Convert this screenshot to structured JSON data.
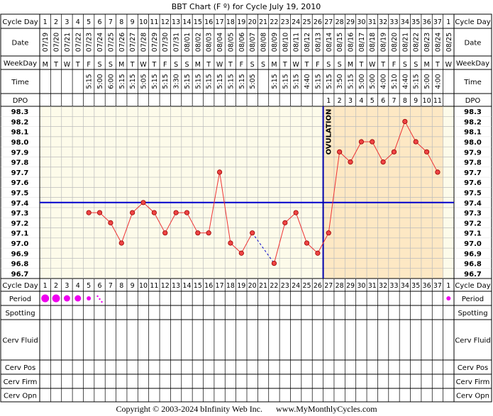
{
  "chart_data": {
    "type": "line",
    "title": "BBT Chart (F º) for Cycle July 19, 2010",
    "row_labels": {
      "cycle_day": "Cycle Day",
      "date": "Date",
      "weekday": "WeekDay",
      "time": "Time",
      "dpo": "DPO",
      "period": "Period",
      "spotting": "Spotting",
      "cerv_fluid": "Cerv Fluid",
      "cerv_pos": "Cerv Pos",
      "cerv_firm": "Cerv Firm",
      "cerv_opn": "Cerv Opn"
    },
    "cycle_days": [
      "1",
      "2",
      "3",
      "4",
      "5",
      "6",
      "7",
      "8",
      "9",
      "10",
      "11",
      "12",
      "13",
      "14",
      "15",
      "16",
      "17",
      "18",
      "19",
      "20",
      "21",
      "22",
      "23",
      "24",
      "25",
      "26",
      "27",
      "28",
      "29",
      "30",
      "31",
      "32",
      "33",
      "34",
      "35",
      "36",
      "37",
      "1"
    ],
    "dates": [
      "07/19",
      "07/20",
      "07/21",
      "07/22",
      "07/23",
      "07/24",
      "07/25",
      "07/26",
      "07/27",
      "07/28",
      "07/29",
      "07/30",
      "07/31",
      "08/01",
      "08/02",
      "08/03",
      "08/04",
      "08/05",
      "08/06",
      "08/07",
      "08/08",
      "08/09",
      "08/10",
      "08/11",
      "08/12",
      "08/13",
      "08/14",
      "08/15",
      "08/16",
      "08/17",
      "08/18",
      "08/19",
      "08/20",
      "08/21",
      "08/22",
      "08/23",
      "08/24",
      "08/25"
    ],
    "weekdays": [
      "M",
      "T",
      "W",
      "T",
      "F",
      "S",
      "S",
      "M",
      "T",
      "W",
      "T",
      "F",
      "S",
      "S",
      "M",
      "T",
      "W",
      "T",
      "F",
      "S",
      "S",
      "M",
      "T",
      "W",
      "T",
      "F",
      "S",
      "S",
      "M",
      "T",
      "W",
      "T",
      "F",
      "S",
      "S",
      "M",
      "T",
      "W"
    ],
    "times": [
      "",
      "",
      "",
      "",
      "5:15",
      "5:00",
      "6:00",
      "5:15",
      "5:15",
      "5:05",
      "5:15",
      "5:15",
      "3:30",
      "5:15",
      "5:15",
      "5:15",
      "5:15",
      "5:15",
      "5:15",
      "5:05",
      "",
      "5:15",
      "5:15",
      "5:15",
      "4:40",
      "5:15",
      "5:15",
      "3:50",
      "5:15",
      "5:00",
      "5:00",
      "4:00",
      "5:10",
      "4:40",
      "5:15",
      "5:00",
      "4:00",
      ""
    ],
    "dpo": [
      "",
      "",
      "",
      "",
      "",
      "",
      "",
      "",
      "",
      "",
      "",
      "",
      "",
      "",
      "",
      "",
      "",
      "",
      "",
      "",
      "",
      "",
      "",
      "",
      "",
      "",
      "1",
      "2",
      "3",
      "4",
      "5",
      "6",
      "7",
      "8",
      "9",
      "10",
      "11",
      ""
    ],
    "yticks": [
      "98.3",
      "98.2",
      "98.1",
      "98.0",
      "97.9",
      "97.8",
      "97.7",
      "97.6",
      "97.5",
      "97.4",
      "97.3",
      "97.2",
      "97.1",
      "97.0",
      "96.9",
      "96.8",
      "96.7"
    ],
    "ylim": [
      96.7,
      98.3
    ],
    "temperatures": [
      null,
      null,
      null,
      null,
      97.3,
      97.3,
      97.2,
      97.0,
      97.3,
      97.4,
      97.3,
      97.1,
      97.3,
      97.3,
      97.1,
      97.1,
      97.7,
      97.0,
      96.9,
      97.1,
      null,
      96.8,
      97.2,
      97.3,
      97.0,
      96.9,
      97.1,
      97.9,
      97.8,
      98.0,
      98.0,
      97.8,
      97.9,
      98.2,
      98.0,
      97.9,
      97.7,
      null
    ],
    "dashed_segment": {
      "from_day_index": 19,
      "to_day_index": 21
    },
    "coverline": 97.4,
    "ovulation_day_index": 25,
    "ovulation_label": "OVULATION",
    "period": [
      3,
      3,
      2,
      2,
      1,
      0.5,
      0,
      0,
      0,
      0,
      0,
      0,
      0,
      0,
      0,
      0,
      0,
      0,
      0,
      0,
      0,
      0,
      0,
      0,
      0,
      0,
      0,
      0,
      0,
      0,
      0,
      0,
      0,
      0,
      0,
      0,
      0,
      1
    ],
    "colors": {
      "line": "#ee3333",
      "coverline": "#0000cc",
      "ovulation": "#0000aa",
      "luteal_bg": "#fde8c4",
      "chart_bg": "#fdfbea",
      "period_dot": "#ee00ee",
      "dot_fill": "#ee4444"
    }
  },
  "footer": {
    "copyright": "Copyright © 2003-2024 bInfinity Web Inc.",
    "site": "www.MyMonthlyCycles.com"
  }
}
